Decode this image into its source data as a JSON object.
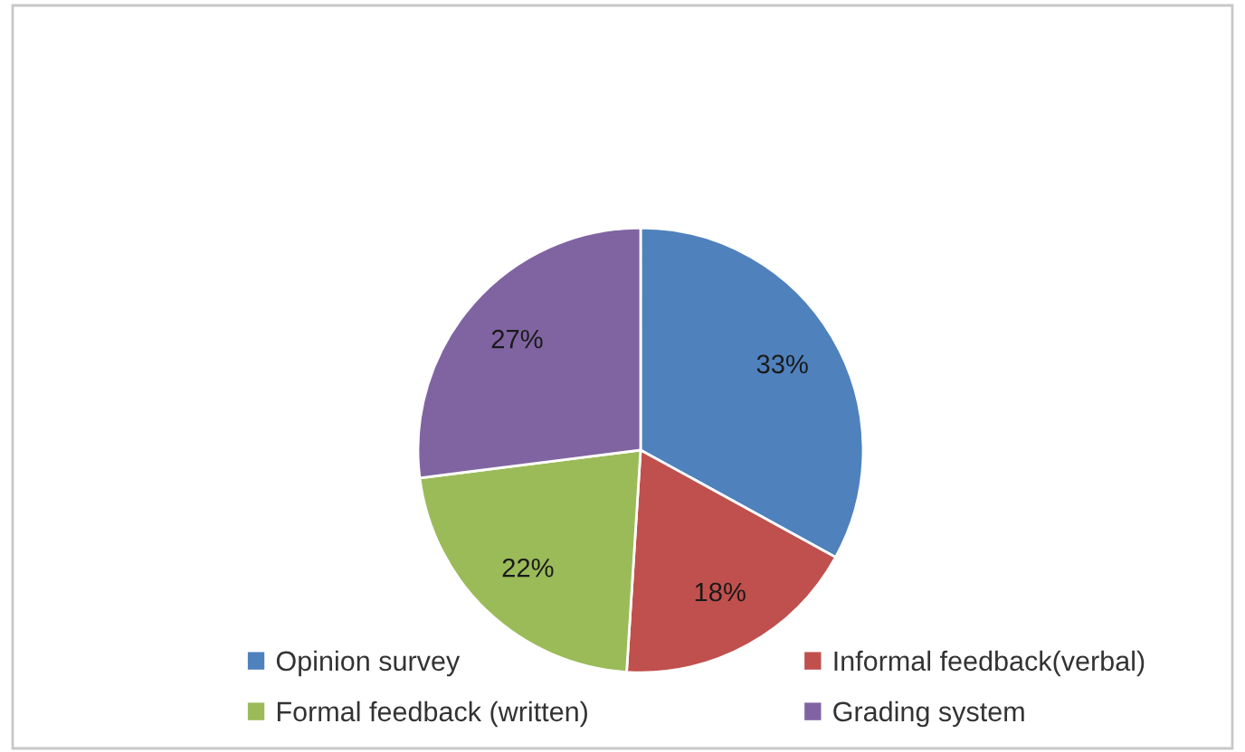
{
  "chart_data": {
    "type": "pie",
    "categories": [
      "Opinion survey",
      "Informal feedback(verbal)",
      "Formal feedback (written)",
      "Grading system"
    ],
    "values": [
      33,
      18,
      22,
      27
    ],
    "colors": [
      "#4f81bd",
      "#c0504d",
      "#9bbb59",
      "#8064a2"
    ],
    "value_labels": [
      "33%",
      "18%",
      "22%",
      "27%"
    ],
    "legend": "bottom"
  }
}
